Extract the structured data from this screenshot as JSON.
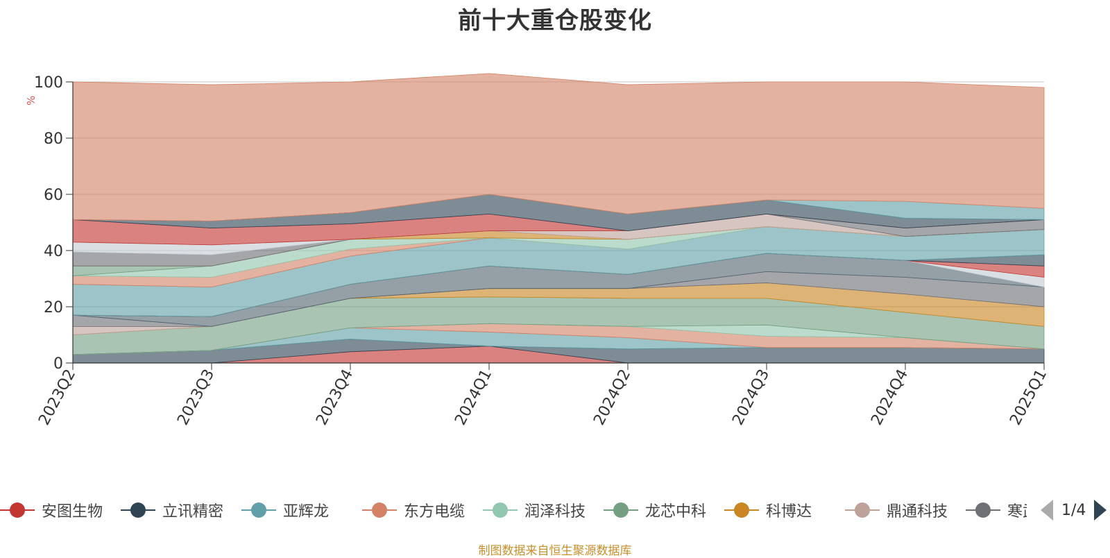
{
  "title": "前十大重仓股变化",
  "source": "制图数据来自恒生聚源数据库",
  "legend_pager": "1/4",
  "legend_visible": [
    "安图生物",
    "立讯精密",
    "亚辉龙",
    "东方电缆",
    "润泽科技",
    "龙芯中科",
    "科博达",
    "鼎通科技",
    "寒武纪"
  ],
  "chart_data": {
    "type": "area",
    "title": "前十大重仓股变化",
    "ylabel": "%",
    "ylim": [
      0,
      100
    ],
    "yticks": [
      0,
      20,
      40,
      60,
      80,
      100
    ],
    "grid": true,
    "legend_position": "bottom",
    "categories": [
      "2023Q2",
      "2023Q3",
      "2023Q4",
      "2024Q1",
      "2024Q2",
      "2024Q3",
      "2024Q4",
      "2025Q1"
    ],
    "series": [
      {
        "name": "安图生物",
        "color": "#c23531",
        "values": [
          0,
          0,
          4,
          6,
          0,
          0,
          0,
          0
        ]
      },
      {
        "name": "立讯精密",
        "color": "#2f4554",
        "values": [
          3,
          4.5,
          4.5,
          0,
          5,
          5.5,
          5.5,
          5
        ]
      },
      {
        "name": "亚辉龙",
        "color": "#61a0a8",
        "values": [
          0,
          0,
          4,
          5,
          4,
          0,
          0,
          0
        ]
      },
      {
        "name": "东方电缆",
        "color": "#d48265",
        "values": [
          0,
          0,
          0,
          3,
          4,
          4,
          3.5,
          0
        ]
      },
      {
        "name": "润泽科技",
        "color": "#91c7ae",
        "values": [
          0,
          0,
          0,
          0,
          0,
          4,
          0,
          0
        ]
      },
      {
        "name": "龙芯中科",
        "color": "#749f83",
        "values": [
          7,
          8.5,
          10.5,
          9.5,
          10,
          9.5,
          9,
          8
        ]
      },
      {
        "name": "科博达",
        "color": "#ca8622",
        "values": [
          0,
          0,
          0,
          3,
          3.5,
          5.5,
          6.5,
          7
        ]
      },
      {
        "name": "鼎通科技",
        "color": "#bda29a",
        "values": [
          3,
          0,
          0,
          0,
          0,
          0,
          0,
          0
        ]
      },
      {
        "name": "寒武纪",
        "color": "#6e7074",
        "values": [
          4,
          0,
          0,
          0,
          0,
          4,
          6,
          7
        ]
      },
      {
        "name": "",
        "color": "#546570",
        "values": [
          0,
          3.5,
          5,
          8,
          5,
          6.5,
          6,
          0
        ]
      },
      {
        "name": "",
        "color": "#c4ccd3",
        "values": [
          0,
          0,
          0,
          0,
          0,
          0,
          0,
          3.5
        ]
      },
      {
        "name": "",
        "color": "#c23531",
        "values": [
          0,
          0,
          0,
          0,
          0,
          0,
          0,
          4
        ]
      },
      {
        "name": "",
        "color": "#2f4554",
        "values": [
          0,
          0,
          0,
          0,
          0,
          0,
          0,
          4
        ]
      },
      {
        "name": "",
        "color": "#61a0a8",
        "values": [
          11,
          10.5,
          10,
          10,
          9,
          9.5,
          8.5,
          9
        ]
      },
      {
        "name": "",
        "color": "#d48265",
        "values": [
          3,
          3.5,
          2.5,
          0,
          0,
          0,
          0,
          0
        ]
      },
      {
        "name": "",
        "color": "#91c7ae",
        "values": [
          0,
          4,
          3.5,
          0,
          3.5,
          0,
          0,
          0
        ]
      },
      {
        "name": "",
        "color": "#749f83",
        "values": [
          3.5,
          0,
          0,
          0,
          0,
          0,
          0,
          0
        ]
      },
      {
        "name": "",
        "color": "#ca8622",
        "values": [
          0,
          0,
          0,
          2.5,
          0,
          0,
          0,
          0
        ]
      },
      {
        "name": "",
        "color": "#bda29a",
        "values": [
          0,
          0,
          0,
          0,
          3,
          4.5,
          0,
          0
        ]
      },
      {
        "name": "",
        "color": "#6e7074",
        "values": [
          5,
          4,
          0,
          0,
          0,
          0,
          3,
          3.5
        ]
      },
      {
        "name": "",
        "color": "#c4ccd3",
        "values": [
          3.5,
          3.5,
          0,
          0,
          0,
          0,
          0,
          0
        ]
      },
      {
        "name": "",
        "color": "#c23531",
        "values": [
          8,
          6,
          5.5,
          6,
          0,
          0,
          0,
          0
        ]
      },
      {
        "name": "",
        "color": "#2f4554",
        "values": [
          0,
          2.5,
          4,
          7,
          6,
          5,
          3.5,
          0
        ]
      },
      {
        "name": "",
        "color": "#61a0a8",
        "values": [
          0,
          0,
          0,
          0,
          0,
          0,
          6,
          4
        ]
      },
      {
        "name": "",
        "color": "#d48265",
        "values": [
          49,
          48.5,
          46.5,
          43,
          46,
          42,
          42.5,
          43
        ]
      }
    ]
  }
}
